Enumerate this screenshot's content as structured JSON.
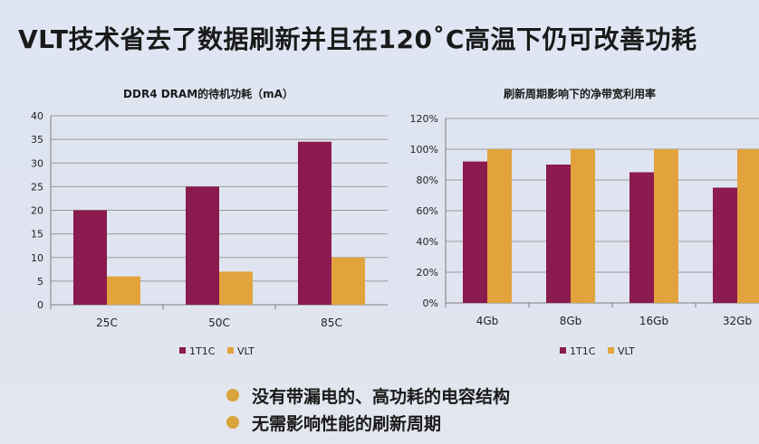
{
  "slide": {
    "title": "VLT技术省去了数据刷新并且在120˚C高温下仍可改善功耗"
  },
  "colors": {
    "series1": "#8b1a4e",
    "series2": "#e2a33c"
  },
  "chart_data": [
    {
      "type": "bar",
      "title": "DDR4 DRAM的待机功耗（mA）",
      "categories": [
        "25C",
        "50C",
        "85C"
      ],
      "series": [
        {
          "name": "1T1C",
          "values": [
            20,
            25,
            34.5
          ]
        },
        {
          "name": "VLT",
          "values": [
            6,
            7,
            10
          ]
        }
      ],
      "ylim": [
        0,
        40
      ],
      "yticks": [
        "0",
        "5",
        "10",
        "15",
        "20",
        "25",
        "30",
        "35",
        "40"
      ],
      "grid": true,
      "legend": "bottom"
    },
    {
      "type": "bar",
      "title": "刷新周期影响下的净带宽利用率",
      "categories": [
        "4Gb",
        "8Gb",
        "16Gb",
        "32Gb"
      ],
      "series": [
        {
          "name": "1T1C",
          "values": [
            92,
            90,
            85,
            75
          ]
        },
        {
          "name": "VLT",
          "values": [
            100,
            100,
            100,
            100
          ]
        }
      ],
      "ylim": [
        0,
        120
      ],
      "yticks": [
        "0%",
        "20%",
        "40%",
        "60%",
        "80%",
        "100%",
        "120%"
      ],
      "grid": true,
      "legend": "bottom"
    }
  ],
  "bullets": [
    "没有带漏电的、高功耗的电容结构",
    "无需影响性能的刷新周期"
  ]
}
